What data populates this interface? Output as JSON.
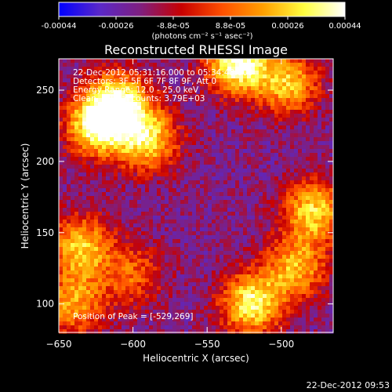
{
  "chart_data": {
    "type": "heatmap",
    "title": "Reconstructed RHESSI Image",
    "xlabel": "Heliocentric X (arcsec)",
    "ylabel": "Heliocentric Y (arcsec)",
    "xlim": [
      -650,
      -465
    ],
    "ylim": [
      80,
      272
    ],
    "xticks": [
      -650,
      -600,
      -550,
      -500
    ],
    "yticks": [
      100,
      150,
      200,
      250
    ],
    "grid": false,
    "colorbar": {
      "range": [
        -0.00044,
        0.00044
      ],
      "tick_labels": [
        "-0.00044",
        "-0.00026",
        "-8.8e-05",
        "8.8e-05",
        "0.00026",
        "0.00044"
      ],
      "unit_label": "(photons cm⁻² s⁻¹ asec⁻²)"
    },
    "annotations": [
      "22-Dec-2012 05:31:16.000 to 05:34:48.000",
      "Detectors: 3F 5F 6F 7F 8F 9F, Att 0",
      "Energy Range: 12.0 - 25.0 keV",
      "Clean     Total counts: 3.79E+03"
    ],
    "peak_label": "Position of Peak = [-529,269]",
    "peak_position": [
      -529,
      269
    ],
    "bright_regions": [
      {
        "x": -610,
        "y": 240,
        "value": 0.0004
      },
      {
        "x": -625,
        "y": 225,
        "value": 0.00034
      },
      {
        "x": -590,
        "y": 215,
        "value": 0.0003
      },
      {
        "x": -529,
        "y": 269,
        "value": 0.00044
      },
      {
        "x": -495,
        "y": 255,
        "value": 0.00026
      },
      {
        "x": -478,
        "y": 165,
        "value": 0.0003
      },
      {
        "x": -490,
        "y": 125,
        "value": 0.00024
      },
      {
        "x": -520,
        "y": 100,
        "value": 0.00036
      },
      {
        "x": -635,
        "y": 140,
        "value": 0.00028
      },
      {
        "x": -640,
        "y": 100,
        "value": 0.00022
      },
      {
        "x": -600,
        "y": 120,
        "value": 0.00012
      }
    ],
    "background_level": -0.00012,
    "colormap": [
      "#000000",
      "#0000ff",
      "#5a28c8",
      "#7f1f7f",
      "#c80000",
      "#ff5000",
      "#ffa000",
      "#ffff40",
      "#ffffff"
    ]
  },
  "timestamp": "22-Dec-2012 09:53"
}
